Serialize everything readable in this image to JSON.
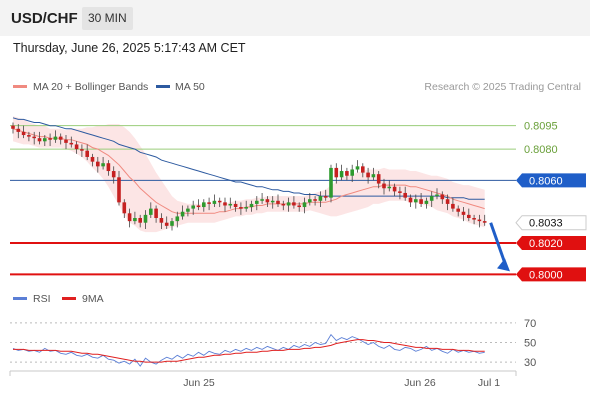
{
  "header": {
    "symbol": "USD/CHF",
    "timeframe": "30 MIN"
  },
  "datetime": "Thursday, June 26, 2025 5:17:43 AM CET",
  "legend": [
    {
      "label": "MA 20 + Bollinger Bands",
      "color": "#f08a80"
    },
    {
      "label": "MA 50",
      "color": "#2d5aa0"
    }
  ],
  "watermark": "Research © 2025 Trading Central",
  "rsi_legend": [
    {
      "label": "RSI",
      "color": "#5b7fd6"
    },
    {
      "label": "9MA",
      "color": "#e02020"
    }
  ],
  "chart_data": [
    {
      "type": "candlestick",
      "price_range": [
        0.799,
        0.8105
      ],
      "levels": [
        {
          "value": 0.8095,
          "label": "0.8095",
          "style": "green-line"
        },
        {
          "value": 0.808,
          "label": "0.8080",
          "style": "green-line"
        },
        {
          "value": 0.806,
          "label": "0.8060",
          "style": "blue-line-badge"
        },
        {
          "value": 0.8033,
          "label": "0.8033",
          "style": "current-price"
        },
        {
          "value": 0.802,
          "label": "0.8020",
          "style": "red-line-badge"
        },
        {
          "value": 0.8,
          "label": "0.8000",
          "style": "red-line-badge"
        }
      ],
      "x_labels": [
        "Jun 25",
        "Jun 26",
        "Jul 1"
      ],
      "forecast": {
        "direction": "down",
        "target": 0.8
      },
      "close": [
        0.8093,
        0.8091,
        0.8089,
        0.8088,
        0.8087,
        0.8085,
        0.8087,
        0.8086,
        0.8088,
        0.8086,
        0.8084,
        0.8083,
        0.808,
        0.8079,
        0.8075,
        0.8072,
        0.8069,
        0.8071,
        0.8066,
        0.8062,
        0.8046,
        0.8039,
        0.8034,
        0.8036,
        0.8033,
        0.8038,
        0.8042,
        0.8036,
        0.8033,
        0.8031,
        0.8034,
        0.8037,
        0.804,
        0.8042,
        0.8044,
        0.8043,
        0.8046,
        0.8045,
        0.8047,
        0.8046,
        0.8044,
        0.8045,
        0.8043,
        0.8042,
        0.8043,
        0.8045,
        0.8047,
        0.8048,
        0.8046,
        0.8047,
        0.8045,
        0.8044,
        0.8046,
        0.8044,
        0.8043,
        0.8046,
        0.8048,
        0.8047,
        0.805,
        0.8049,
        0.8068,
        0.8062,
        0.8066,
        0.8063,
        0.8067,
        0.8069,
        0.8065,
        0.8062,
        0.8064,
        0.8058,
        0.8055,
        0.8056,
        0.8053,
        0.8052,
        0.8049,
        0.8046,
        0.8048,
        0.8045,
        0.8047,
        0.805,
        0.8051,
        0.8048,
        0.8045,
        0.8042,
        0.804,
        0.8038,
        0.8036,
        0.8035,
        0.8034,
        0.8033
      ],
      "ma20": [
        0.8093,
        0.8092,
        0.8091,
        0.809,
        0.8089,
        0.8088,
        0.8088,
        0.8087,
        0.8087,
        0.8087,
        0.8086,
        0.8086,
        0.8085,
        0.8084,
        0.8083,
        0.8081,
        0.808,
        0.8078,
        0.8076,
        0.8073,
        0.807,
        0.8066,
        0.8062,
        0.8059,
        0.8055,
        0.8052,
        0.8049,
        0.8046,
        0.8044,
        0.8042,
        0.804,
        0.8039,
        0.8039,
        0.8039,
        0.8039,
        0.8039,
        0.8039,
        0.8039,
        0.8039,
        0.804,
        0.804,
        0.8041,
        0.8042,
        0.8042,
        0.8043,
        0.8043,
        0.8044,
        0.8044,
        0.8045,
        0.8045,
        0.8045,
        0.8045,
        0.8045,
        0.8045,
        0.8045,
        0.8045,
        0.8046,
        0.8046,
        0.8046,
        0.8046,
        0.8047,
        0.8048,
        0.805,
        0.8051,
        0.8052,
        0.8053,
        0.8054,
        0.8055,
        0.8056,
        0.8056,
        0.8057,
        0.8057,
        0.8057,
        0.8057,
        0.8057,
        0.8056,
        0.8056,
        0.8055,
        0.8054,
        0.8053,
        0.8052,
        0.8051,
        0.805,
        0.8048,
        0.8047,
        0.8046,
        0.8045,
        0.8044,
        0.8043,
        0.8042
      ],
      "ma50": [
        0.81,
        0.8099,
        0.8099,
        0.8098,
        0.8097,
        0.8097,
        0.8096,
        0.8095,
        0.8095,
        0.8094,
        0.8093,
        0.8093,
        0.8092,
        0.8091,
        0.809,
        0.8089,
        0.8088,
        0.8087,
        0.8086,
        0.8085,
        0.8083,
        0.8082,
        0.8081,
        0.808,
        0.8078,
        0.8077,
        0.8076,
        0.8075,
        0.8073,
        0.8072,
        0.8071,
        0.807,
        0.8069,
        0.8068,
        0.8067,
        0.8066,
        0.8065,
        0.8064,
        0.8063,
        0.8062,
        0.8061,
        0.806,
        0.8059,
        0.8059,
        0.8058,
        0.8057,
        0.8056,
        0.8056,
        0.8055,
        0.8054,
        0.8054,
        0.8053,
        0.8053,
        0.8052,
        0.8052,
        0.8051,
        0.8051,
        0.8051,
        0.805,
        0.805,
        0.805,
        0.805,
        0.805,
        0.805,
        0.805,
        0.805,
        0.805,
        0.805,
        0.805,
        0.805,
        0.805,
        0.805,
        0.805,
        0.805,
        0.805,
        0.805,
        0.805,
        0.805,
        0.805,
        0.805,
        0.805,
        0.805,
        0.8049,
        0.8049,
        0.8049,
        0.8049,
        0.8048,
        0.8048,
        0.8048,
        0.8048
      ],
      "bb_width": [
        0.0008,
        0.0008,
        0.0008,
        0.0007,
        0.0007,
        0.0007,
        0.0007,
        0.0006,
        0.0006,
        0.0006,
        0.0006,
        0.0007,
        0.0008,
        0.0009,
        0.0011,
        0.0013,
        0.0015,
        0.0017,
        0.002,
        0.0023,
        0.0026,
        0.0028,
        0.0029,
        0.0028,
        0.0027,
        0.0025,
        0.0022,
        0.0019,
        0.0016,
        0.0013,
        0.001,
        0.0008,
        0.0007,
        0.0006,
        0.0006,
        0.0006,
        0.0006,
        0.0006,
        0.0006,
        0.0006,
        0.0005,
        0.0005,
        0.0005,
        0.0005,
        0.0005,
        0.0005,
        0.0005,
        0.0005,
        0.0005,
        0.0005,
        0.0005,
        0.0005,
        0.0005,
        0.0005,
        0.0005,
        0.0005,
        0.0005,
        0.0006,
        0.0007,
        0.0008,
        0.001,
        0.0011,
        0.0012,
        0.0012,
        0.0012,
        0.0012,
        0.0012,
        0.0012,
        0.0011,
        0.0011,
        0.0011,
        0.001,
        0.001,
        0.001,
        0.001,
        0.001,
        0.001,
        0.001,
        0.001,
        0.001,
        0.0011,
        0.0011,
        0.0011,
        0.0011,
        0.0011,
        0.0011,
        0.0012,
        0.0012,
        0.0012,
        0.0012
      ]
    },
    {
      "type": "line",
      "title": "RSI",
      "y_ticks": [
        70,
        50,
        30
      ],
      "y_range": [
        22,
        78
      ],
      "rsi": [
        44,
        42,
        43,
        41,
        42,
        40,
        44,
        41,
        42,
        39,
        38,
        40,
        37,
        36,
        38,
        35,
        34,
        37,
        33,
        32,
        29,
        31,
        28,
        33,
        26,
        34,
        30,
        28,
        32,
        35,
        33,
        37,
        34,
        38,
        36,
        40,
        37,
        41,
        39,
        38,
        42,
        40,
        43,
        41,
        44,
        42,
        45,
        43,
        46,
        44,
        42,
        45,
        43,
        47,
        45,
        48,
        46,
        50,
        48,
        49,
        58,
        52,
        55,
        53,
        56,
        54,
        51,
        48,
        50,
        46,
        44,
        47,
        43,
        42,
        45,
        44,
        41,
        43,
        46,
        42,
        44,
        41,
        39,
        43,
        40,
        42,
        40,
        41,
        39,
        40
      ],
      "ma9": [
        43,
        43,
        43,
        42,
        42,
        42,
        42,
        42,
        42,
        41,
        41,
        41,
        40,
        39,
        39,
        38,
        38,
        37,
        36,
        35,
        34,
        33,
        32,
        31,
        31,
        30,
        30,
        30,
        30,
        31,
        31,
        31,
        32,
        33,
        34,
        35,
        35,
        36,
        37,
        37,
        38,
        38,
        39,
        39,
        40,
        40,
        40,
        41,
        41,
        42,
        42,
        42,
        43,
        43,
        43,
        44,
        44,
        45,
        45,
        46,
        47,
        49,
        50,
        51,
        52,
        53,
        53,
        52,
        52,
        51,
        50,
        50,
        49,
        48,
        47,
        46,
        45,
        45,
        44,
        44,
        44,
        43,
        43,
        43,
        42,
        42,
        42,
        41,
        41,
        41
      ]
    }
  ]
}
